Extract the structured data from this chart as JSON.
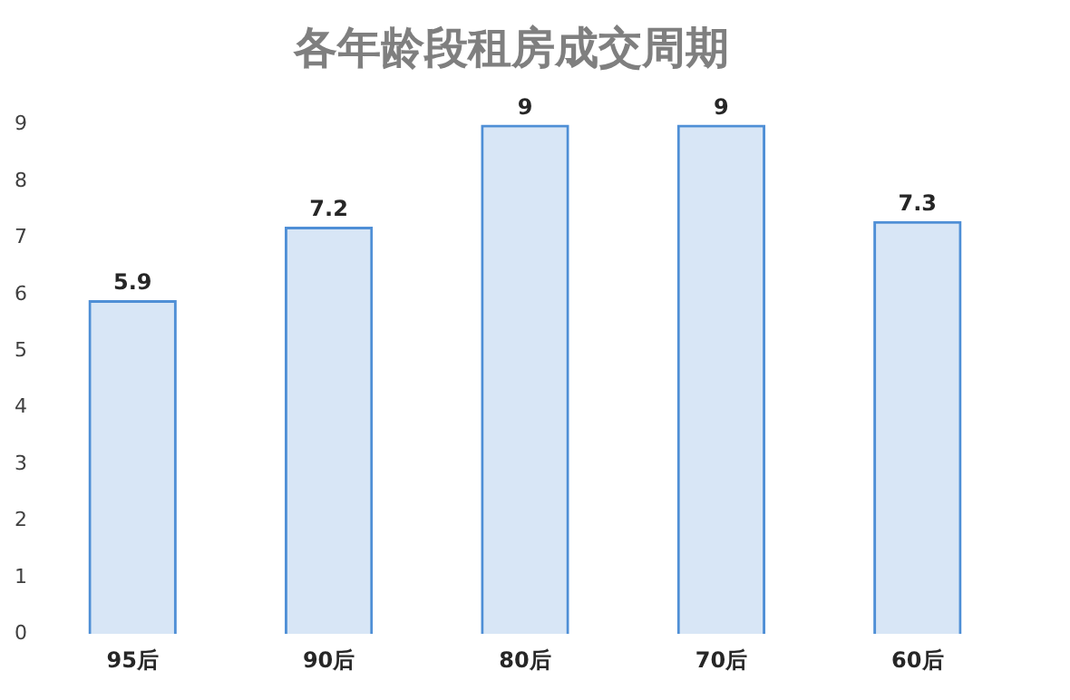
{
  "chart_data": {
    "type": "bar",
    "title": "各年龄段租房成交周期",
    "categories": [
      "95后",
      "90后",
      "80后",
      "70后",
      "60后"
    ],
    "values": [
      5.9,
      7.2,
      9,
      9,
      7.3
    ],
    "color": "#4f8fd6",
    "ylim": [
      0,
      9
    ],
    "yticks": [
      0,
      1,
      2,
      3,
      4,
      5,
      6,
      7,
      8,
      9
    ],
    "grid": false,
    "legend": false,
    "data_labels": true
  }
}
